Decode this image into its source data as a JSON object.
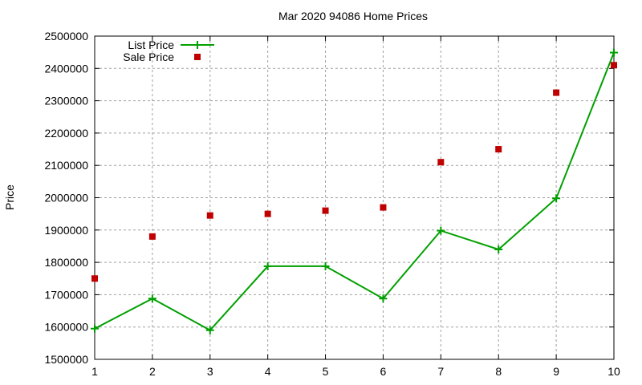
{
  "chart_data": {
    "type": "line",
    "title": "Mar 2020 94086 Home Prices",
    "xlabel": "",
    "ylabel": "Price",
    "x": [
      1,
      2,
      3,
      4,
      5,
      6,
      7,
      8,
      9,
      10
    ],
    "xlim": [
      1,
      10
    ],
    "ylim": [
      1500000,
      2500000
    ],
    "yticks": [
      1500000,
      1600000,
      1700000,
      1800000,
      1900000,
      2000000,
      2100000,
      2200000,
      2300000,
      2400000,
      2500000
    ],
    "xticks": [
      1,
      2,
      3,
      4,
      5,
      6,
      7,
      8,
      9,
      10
    ],
    "grid": true,
    "legend_position": "top-left",
    "series": [
      {
        "name": "List Price",
        "style": "line+cross",
        "color": "#00a000",
        "values": [
          1595000,
          1688000,
          1590000,
          1788000,
          1788000,
          1688000,
          1898000,
          1840000,
          1998000,
          2449000
        ]
      },
      {
        "name": "Sale Price",
        "style": "square-points",
        "color": "#c00000",
        "values": [
          1750000,
          1880000,
          1945000,
          1950000,
          1960000,
          1970000,
          2110000,
          2150000,
          2325000,
          2410000
        ]
      }
    ]
  }
}
